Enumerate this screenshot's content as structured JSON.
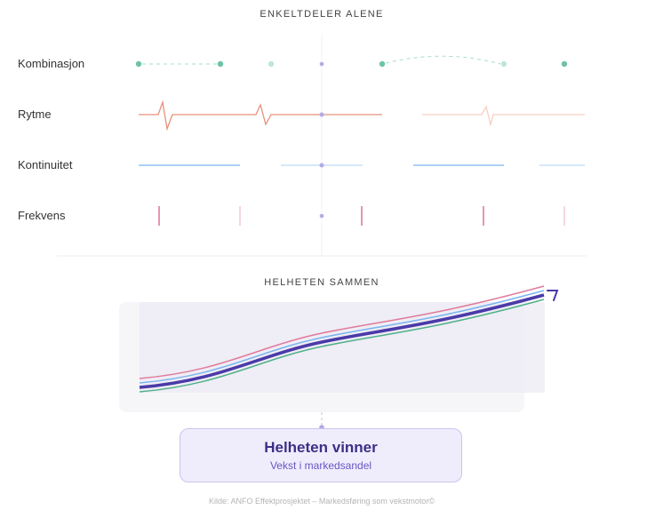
{
  "sections": {
    "top_title": "ENKELTDELER ALENE",
    "bottom_title": "HELHETEN SAMMEN"
  },
  "rows": [
    {
      "label": "Kombinasjon"
    },
    {
      "label": "Rytme"
    },
    {
      "label": "Kontinuitet"
    },
    {
      "label": "Frekvens"
    }
  ],
  "result": {
    "title": "Helheten vinner",
    "subtitle": "Vekst i markedsandel"
  },
  "footer": "Kilde: ANFO Effektprosjektet – Markedsføring som vekstmotor©",
  "colors": {
    "green": "#6cc4a1",
    "orange": "#e8907a",
    "blue": "#7ab4f0",
    "pink": "#e07b9c",
    "purple": "#4a3aa8"
  }
}
